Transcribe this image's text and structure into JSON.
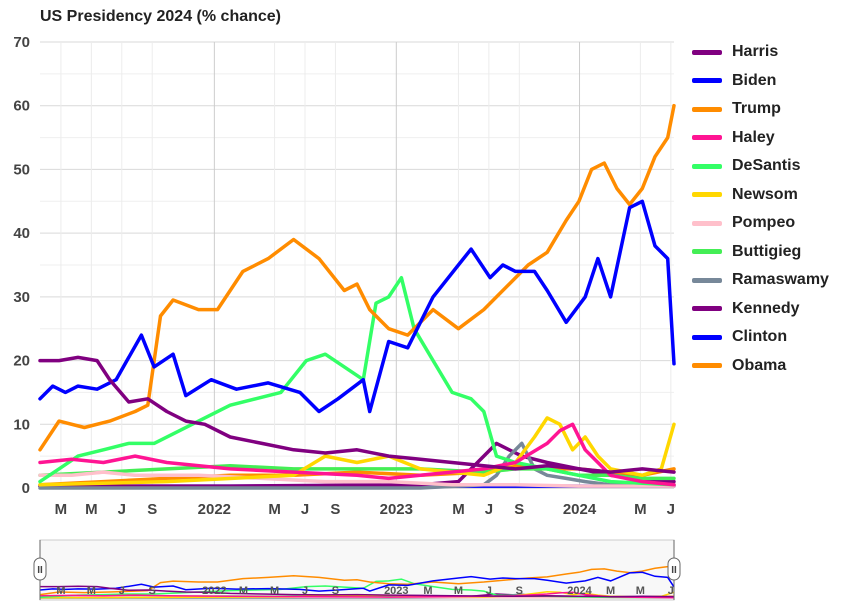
{
  "chart_data": {
    "type": "line",
    "title": "US Presidency 2024 (% chance)",
    "ylim": [
      0,
      70
    ],
    "y_ticks": [
      "0",
      "10",
      "20",
      "30",
      "40",
      "50",
      "60",
      "70"
    ],
    "x_tick_labels": [
      {
        "label": "M",
        "t": 0.033
      },
      {
        "label": "M",
        "t": 0.081
      },
      {
        "label": "J",
        "t": 0.129
      },
      {
        "label": "S",
        "t": 0.177
      },
      {
        "label": "2022",
        "t": 0.275
      },
      {
        "label": "M",
        "t": 0.37
      },
      {
        "label": "J",
        "t": 0.418
      },
      {
        "label": "S",
        "t": 0.466
      },
      {
        "label": "2023",
        "t": 0.562
      },
      {
        "label": "M",
        "t": 0.66
      },
      {
        "label": "J",
        "t": 0.708
      },
      {
        "label": "S",
        "t": 0.756
      },
      {
        "label": "2024",
        "t": 0.851
      },
      {
        "label": "M",
        "t": 0.947
      },
      {
        "label": "J",
        "t": 0.995
      }
    ],
    "grid": true,
    "legend_position": "right",
    "series": [
      {
        "name": "Harris",
        "color": "#800080",
        "points": [
          [
            0,
            20
          ],
          [
            0.03,
            20
          ],
          [
            0.06,
            20.5
          ],
          [
            0.09,
            20
          ],
          [
            0.11,
            17
          ],
          [
            0.14,
            13.5
          ],
          [
            0.17,
            14
          ],
          [
            0.2,
            12
          ],
          [
            0.23,
            10.5
          ],
          [
            0.26,
            10
          ],
          [
            0.3,
            8
          ],
          [
            0.35,
            7
          ],
          [
            0.4,
            6
          ],
          [
            0.45,
            5.5
          ],
          [
            0.5,
            6
          ],
          [
            0.55,
            5
          ],
          [
            0.6,
            4.5
          ],
          [
            0.65,
            4
          ],
          [
            0.7,
            3.5
          ],
          [
            0.75,
            3
          ],
          [
            0.8,
            3.5
          ],
          [
            0.85,
            3
          ],
          [
            0.9,
            2.5
          ],
          [
            0.95,
            3
          ],
          [
            1,
            2.5
          ]
        ]
      },
      {
        "name": "Biden",
        "color": "#0000ff",
        "points": [
          [
            0,
            14
          ],
          [
            0.02,
            16
          ],
          [
            0.04,
            15
          ],
          [
            0.06,
            16
          ],
          [
            0.09,
            15.5
          ],
          [
            0.12,
            17
          ],
          [
            0.16,
            24
          ],
          [
            0.18,
            19
          ],
          [
            0.21,
            21
          ],
          [
            0.23,
            14.5
          ],
          [
            0.27,
            17
          ],
          [
            0.31,
            15.5
          ],
          [
            0.36,
            16.5
          ],
          [
            0.41,
            15
          ],
          [
            0.44,
            12
          ],
          [
            0.47,
            14
          ],
          [
            0.51,
            17
          ],
          [
            0.52,
            12
          ],
          [
            0.55,
            23
          ],
          [
            0.58,
            22
          ],
          [
            0.62,
            30
          ],
          [
            0.66,
            35
          ],
          [
            0.68,
            37.5
          ],
          [
            0.71,
            33
          ],
          [
            0.73,
            35
          ],
          [
            0.75,
            34
          ],
          [
            0.78,
            34
          ],
          [
            0.8,
            31
          ],
          [
            0.83,
            26
          ],
          [
            0.86,
            30
          ],
          [
            0.88,
            36
          ],
          [
            0.9,
            30
          ],
          [
            0.93,
            44
          ],
          [
            0.95,
            45
          ],
          [
            0.97,
            38
          ],
          [
            0.99,
            36
          ],
          [
            1,
            19.5
          ]
        ]
      },
      {
        "name": "Trump",
        "color": "#ff8c00",
        "points": [
          [
            0,
            6
          ],
          [
            0.03,
            10.5
          ],
          [
            0.07,
            9.5
          ],
          [
            0.11,
            10.5
          ],
          [
            0.15,
            12
          ],
          [
            0.17,
            13
          ],
          [
            0.19,
            27
          ],
          [
            0.21,
            29.5
          ],
          [
            0.25,
            28
          ],
          [
            0.28,
            28
          ],
          [
            0.32,
            34
          ],
          [
            0.36,
            36
          ],
          [
            0.4,
            39
          ],
          [
            0.44,
            36
          ],
          [
            0.48,
            31
          ],
          [
            0.5,
            32
          ],
          [
            0.52,
            28
          ],
          [
            0.55,
            25
          ],
          [
            0.58,
            24
          ],
          [
            0.62,
            28
          ],
          [
            0.66,
            25
          ],
          [
            0.7,
            28
          ],
          [
            0.74,
            32
          ],
          [
            0.77,
            35
          ],
          [
            0.8,
            37
          ],
          [
            0.83,
            42
          ],
          [
            0.85,
            45
          ],
          [
            0.87,
            50
          ],
          [
            0.89,
            51
          ],
          [
            0.91,
            47
          ],
          [
            0.93,
            44.5
          ],
          [
            0.95,
            47
          ],
          [
            0.97,
            52
          ],
          [
            0.99,
            55
          ],
          [
            1,
            60
          ]
        ]
      },
      {
        "name": "Haley",
        "color": "#ff1493",
        "points": [
          [
            0,
            4
          ],
          [
            0.05,
            4.5
          ],
          [
            0.1,
            4
          ],
          [
            0.15,
            5
          ],
          [
            0.2,
            4
          ],
          [
            0.3,
            3
          ],
          [
            0.4,
            2.5
          ],
          [
            0.5,
            2
          ],
          [
            0.55,
            1.5
          ],
          [
            0.6,
            2
          ],
          [
            0.7,
            3
          ],
          [
            0.75,
            4
          ],
          [
            0.8,
            7
          ],
          [
            0.82,
            9
          ],
          [
            0.84,
            10
          ],
          [
            0.86,
            6
          ],
          [
            0.88,
            4
          ],
          [
            0.9,
            2
          ],
          [
            0.95,
            1
          ],
          [
            1,
            0.5
          ]
        ]
      },
      {
        "name": "DeSantis",
        "color": "#33ff66",
        "points": [
          [
            0,
            1
          ],
          [
            0.03,
            3
          ],
          [
            0.06,
            5
          ],
          [
            0.1,
            6
          ],
          [
            0.14,
            7
          ],
          [
            0.18,
            7
          ],
          [
            0.22,
            9
          ],
          [
            0.26,
            11
          ],
          [
            0.3,
            13
          ],
          [
            0.34,
            14
          ],
          [
            0.38,
            15
          ],
          [
            0.42,
            20
          ],
          [
            0.45,
            21
          ],
          [
            0.48,
            19
          ],
          [
            0.51,
            17
          ],
          [
            0.53,
            29
          ],
          [
            0.55,
            30
          ],
          [
            0.57,
            33
          ],
          [
            0.59,
            25
          ],
          [
            0.62,
            20
          ],
          [
            0.65,
            15
          ],
          [
            0.68,
            14
          ],
          [
            0.7,
            12
          ],
          [
            0.72,
            5
          ],
          [
            0.75,
            4
          ],
          [
            0.8,
            3
          ],
          [
            0.85,
            2
          ],
          [
            0.9,
            1
          ],
          [
            1,
            0.5
          ]
        ]
      },
      {
        "name": "Newsom",
        "color": "#ffd700",
        "points": [
          [
            0,
            0.5
          ],
          [
            0.2,
            1
          ],
          [
            0.4,
            2
          ],
          [
            0.45,
            5
          ],
          [
            0.5,
            4
          ],
          [
            0.55,
            5
          ],
          [
            0.6,
            3
          ],
          [
            0.7,
            2
          ],
          [
            0.75,
            4
          ],
          [
            0.78,
            8
          ],
          [
            0.8,
            11
          ],
          [
            0.82,
            10
          ],
          [
            0.84,
            6
          ],
          [
            0.86,
            8
          ],
          [
            0.88,
            5
          ],
          [
            0.9,
            3
          ],
          [
            0.95,
            2
          ],
          [
            0.98,
            3
          ],
          [
            1,
            10
          ]
        ]
      },
      {
        "name": "Pompeo",
        "color": "#ffc0cb",
        "points": [
          [
            0,
            2
          ],
          [
            0.05,
            2
          ],
          [
            0.1,
            2.5
          ],
          [
            0.15,
            2
          ],
          [
            0.25,
            2
          ],
          [
            0.35,
            1.5
          ],
          [
            0.45,
            1
          ],
          [
            0.55,
            1
          ],
          [
            0.65,
            0.5
          ],
          [
            0.75,
            0.5
          ],
          [
            0.85,
            0.3
          ],
          [
            1,
            0.3
          ]
        ]
      },
      {
        "name": "Buttigieg",
        "color": "#44ee55",
        "points": [
          [
            0,
            2
          ],
          [
            0.1,
            2.5
          ],
          [
            0.2,
            3
          ],
          [
            0.3,
            3.5
          ],
          [
            0.4,
            3
          ],
          [
            0.5,
            3
          ],
          [
            0.6,
            3
          ],
          [
            0.7,
            2.5
          ],
          [
            0.75,
            3
          ],
          [
            0.8,
            3
          ],
          [
            0.85,
            2
          ],
          [
            0.9,
            2
          ],
          [
            0.95,
            1.5
          ],
          [
            1,
            1.5
          ]
        ]
      },
      {
        "name": "Ramaswamy",
        "color": "#778899",
        "points": [
          [
            0,
            0
          ],
          [
            0.6,
            0
          ],
          [
            0.7,
            0.5
          ],
          [
            0.72,
            2
          ],
          [
            0.74,
            5
          ],
          [
            0.76,
            7
          ],
          [
            0.78,
            3
          ],
          [
            0.8,
            2
          ],
          [
            0.83,
            1.5
          ],
          [
            0.86,
            1
          ],
          [
            0.9,
            0.5
          ],
          [
            1,
            0.3
          ]
        ]
      },
      {
        "name": "Kennedy",
        "color": "#800080",
        "points": [
          [
            0,
            0.3
          ],
          [
            0.3,
            0.3
          ],
          [
            0.6,
            0.5
          ],
          [
            0.66,
            1
          ],
          [
            0.68,
            3
          ],
          [
            0.7,
            5
          ],
          [
            0.72,
            7
          ],
          [
            0.74,
            6
          ],
          [
            0.76,
            5
          ],
          [
            0.8,
            4
          ],
          [
            0.85,
            3
          ],
          [
            0.9,
            2
          ],
          [
            0.95,
            1.5
          ],
          [
            1,
            1
          ]
        ]
      },
      {
        "name": "Clinton",
        "color": "#0000ff",
        "points": [
          [
            0,
            0.3
          ],
          [
            0.2,
            0.3
          ],
          [
            0.4,
            0.3
          ],
          [
            0.6,
            0.3
          ],
          [
            0.8,
            0.3
          ],
          [
            1,
            0.3
          ]
        ]
      },
      {
        "name": "Obama",
        "color": "#ff8c00",
        "points": [
          [
            0,
            0.5
          ],
          [
            0.1,
            1
          ],
          [
            0.2,
            1.5
          ],
          [
            0.3,
            2
          ],
          [
            0.4,
            2
          ],
          [
            0.5,
            2.5
          ],
          [
            0.6,
            2
          ],
          [
            0.7,
            2.5
          ],
          [
            0.75,
            3.5
          ],
          [
            0.8,
            3
          ],
          [
            0.85,
            3
          ],
          [
            0.9,
            2.5
          ],
          [
            0.95,
            2
          ],
          [
            1,
            3
          ]
        ]
      }
    ]
  },
  "navigator": {
    "tick_labels": [
      {
        "label": "M",
        "t": 0.033
      },
      {
        "label": "M",
        "t": 0.081
      },
      {
        "label": "J",
        "t": 0.129
      },
      {
        "label": "S",
        "t": 0.177
      },
      {
        "label": "2022",
        "t": 0.275
      },
      {
        "label": "M",
        "t": 0.321
      },
      {
        "label": "M",
        "t": 0.37
      },
      {
        "label": "J",
        "t": 0.418
      },
      {
        "label": "S",
        "t": 0.466
      },
      {
        "label": "2023",
        "t": 0.562
      },
      {
        "label": "M",
        "t": 0.612
      },
      {
        "label": "M",
        "t": 0.66
      },
      {
        "label": "J",
        "t": 0.708
      },
      {
        "label": "S",
        "t": 0.756
      },
      {
        "label": "2024",
        "t": 0.851
      },
      {
        "label": "M",
        "t": 0.9
      },
      {
        "label": "M",
        "t": 0.947
      },
      {
        "label": "J",
        "t": 0.995
      }
    ],
    "handle_glyph": "II"
  }
}
